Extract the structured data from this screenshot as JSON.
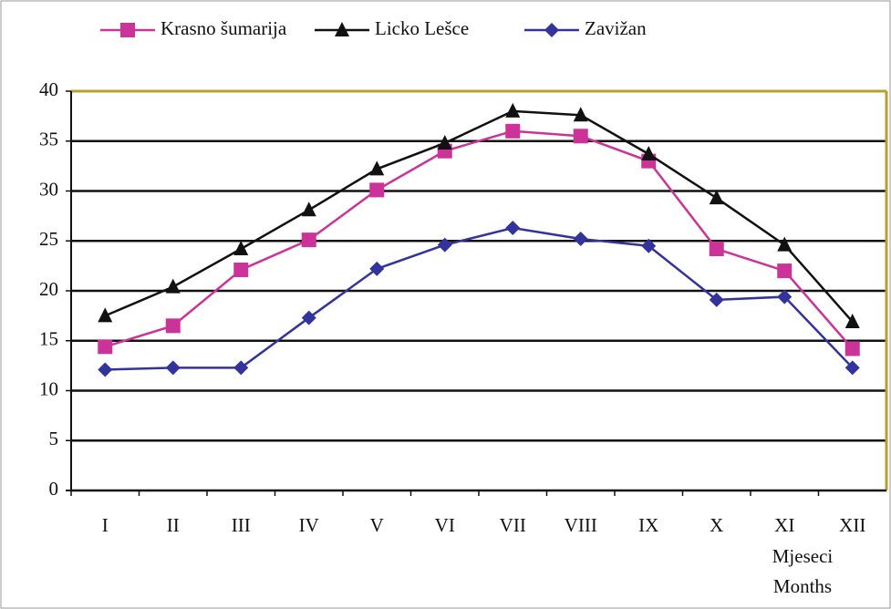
{
  "chart_data": {
    "type": "line",
    "categories": [
      "I",
      "II",
      "III",
      "IV",
      "V",
      "VI",
      "VII",
      "VIII",
      "IX",
      "X",
      "XI",
      "XII"
    ],
    "series": [
      {
        "name": "Krasno šumarija",
        "color": "#cc3399",
        "marker": "square",
        "values": [
          14.4,
          16.5,
          22.1,
          25.1,
          30.1,
          34.0,
          36.0,
          35.5,
          33.0,
          24.2,
          22.0,
          14.2
        ]
      },
      {
        "name": "Licko Lešce",
        "color": "#111111",
        "marker": "triangle",
        "values": [
          17.5,
          20.4,
          24.2,
          28.1,
          32.2,
          34.8,
          38.0,
          37.6,
          33.7,
          29.3,
          24.6,
          16.9
        ]
      },
      {
        "name": "Zavižan",
        "color": "#33339e",
        "marker": "diamond",
        "values": [
          12.1,
          12.3,
          12.3,
          17.3,
          22.2,
          24.6,
          26.3,
          25.2,
          24.5,
          19.1,
          19.4,
          12.3
        ]
      }
    ],
    "xlabel": [
      "Mjeseci",
      "Months"
    ],
    "ylim": [
      0,
      40
    ],
    "yticks": [
      0,
      5,
      10,
      15,
      20,
      25,
      30,
      35,
      40
    ],
    "grid": true,
    "legend": "top"
  }
}
